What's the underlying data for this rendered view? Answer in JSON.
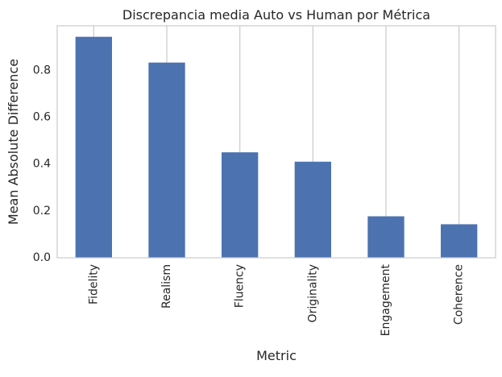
{
  "chart_data": {
    "type": "bar",
    "title": "Discrepancia media Auto vs Human por Métrica",
    "xlabel": "Metric",
    "ylabel": "Mean Absolute Difference",
    "categories": [
      "Fidelity",
      "Realism",
      "Fluency",
      "Originality",
      "Engagement",
      "Coherence"
    ],
    "values": [
      0.943,
      0.833,
      0.45,
      0.41,
      0.177,
      0.143
    ],
    "ylim": [
      0,
      0.99
    ],
    "yticks": [
      0.0,
      0.2,
      0.4,
      0.6,
      0.8
    ],
    "ytick_labels": [
      "0.0",
      "0.2",
      "0.4",
      "0.6",
      "0.8"
    ],
    "bar_color": "#4c72b0",
    "grid_color": "#cccccc",
    "grid": "x",
    "legend": "none"
  }
}
